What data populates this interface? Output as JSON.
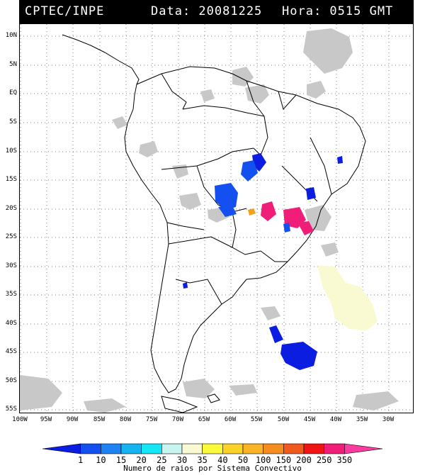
{
  "header": {
    "source": "CPTEC/INPE",
    "date_label": "Data: 20081225",
    "time_label": "Hora: 0515 GMT"
  },
  "map": {
    "lat_labels": [
      "10N",
      "5N",
      "EQ",
      "5S",
      "10S",
      "15S",
      "20S",
      "25S",
      "30S",
      "35S",
      "40S",
      "45S",
      "50S",
      "55S"
    ],
    "lon_labels": [
      "100W",
      "95W",
      "90W",
      "85W",
      "80W",
      "75W",
      "70W",
      "65W",
      "60W",
      "55W",
      "50W",
      "45W",
      "40W",
      "35W",
      "30W"
    ]
  },
  "colorbar": {
    "ticks": [
      "1",
      "10",
      "15",
      "20",
      "25",
      "30",
      "35",
      "40",
      "50",
      "100",
      "150",
      "200",
      "250",
      "350"
    ],
    "colors": [
      "#0a1de0",
      "#1450f0",
      "#1e82f5",
      "#14b4f0",
      "#14e6f5",
      "#c8f5f0",
      "#fafad2",
      "#fafa3c",
      "#fad228",
      "#fab428",
      "#f58c1e",
      "#f05a1e",
      "#f01414",
      "#f01e78",
      "#fa3ca0"
    ],
    "caption": "Numero de raios por Sistema Convectivo"
  },
  "legend_colors": {
    "cloud": "#c8c8c8",
    "land_outline": "#000000",
    "grid": "#000000"
  }
}
